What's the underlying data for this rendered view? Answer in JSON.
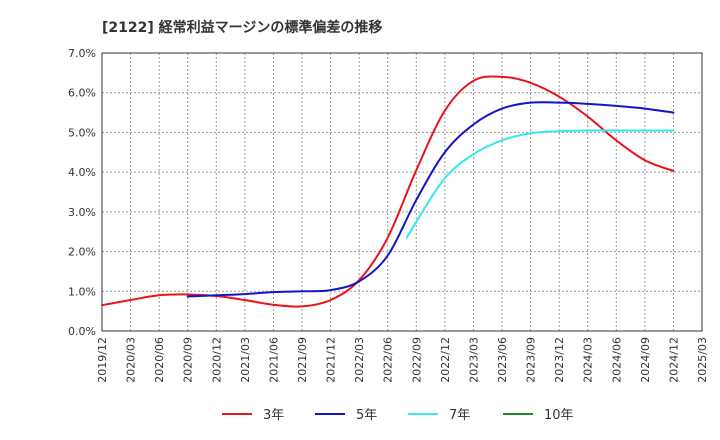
{
  "chart_data": {
    "type": "line",
    "title": "[2122]  経常利益マージンの標準偏差の推移",
    "xlabel": "",
    "ylabel": "",
    "x_ticks": [
      "2019/12",
      "2020/03",
      "2020/06",
      "2020/09",
      "2020/12",
      "2021/03",
      "2021/06",
      "2021/09",
      "2021/12",
      "2022/03",
      "2022/06",
      "2022/09",
      "2022/12",
      "2023/03",
      "2023/06",
      "2023/09",
      "2023/12",
      "2024/03",
      "2024/06",
      "2024/09",
      "2024/12",
      "2025/03"
    ],
    "y_ticks": [
      "0.0%",
      "1.0%",
      "2.0%",
      "3.0%",
      "4.0%",
      "5.0%",
      "6.0%",
      "7.0%"
    ],
    "ylim": [
      0,
      7
    ],
    "grid": true,
    "legend_position": "bottom",
    "series": [
      {
        "name": "3年",
        "color": "#e8141b",
        "points": [
          [
            "2019/12",
            0.65
          ],
          [
            "2020/03",
            0.78
          ],
          [
            "2020/06",
            0.9
          ],
          [
            "2020/09",
            0.92
          ],
          [
            "2020/12",
            0.88
          ],
          [
            "2021/03",
            0.78
          ],
          [
            "2021/06",
            0.66
          ],
          [
            "2021/09",
            0.62
          ],
          [
            "2021/12",
            0.78
          ],
          [
            "2022/03",
            1.28
          ],
          [
            "2022/06",
            2.35
          ],
          [
            "2022/09",
            4.05
          ],
          [
            "2022/12",
            5.55
          ],
          [
            "2023/03",
            6.3
          ],
          [
            "2023/06",
            6.4
          ],
          [
            "2023/09",
            6.25
          ],
          [
            "2023/12",
            5.9
          ],
          [
            "2024/03",
            5.4
          ],
          [
            "2024/06",
            4.8
          ],
          [
            "2024/09",
            4.3
          ],
          [
            "2024/12",
            4.03
          ]
        ]
      },
      {
        "name": "5年",
        "color": "#1414c8",
        "points": [
          [
            "2020/09",
            0.87
          ],
          [
            "2020/12",
            0.9
          ],
          [
            "2021/03",
            0.93
          ],
          [
            "2021/06",
            0.98
          ],
          [
            "2021/09",
            1.0
          ],
          [
            "2021/12",
            1.03
          ],
          [
            "2022/03",
            1.25
          ],
          [
            "2022/06",
            1.9
          ],
          [
            "2022/09",
            3.3
          ],
          [
            "2022/12",
            4.5
          ],
          [
            "2023/03",
            5.2
          ],
          [
            "2023/06",
            5.6
          ],
          [
            "2023/09",
            5.75
          ],
          [
            "2023/12",
            5.75
          ],
          [
            "2024/03",
            5.72
          ],
          [
            "2024/06",
            5.67
          ],
          [
            "2024/09",
            5.6
          ],
          [
            "2024/12",
            5.5
          ]
        ]
      },
      {
        "name": "7年",
        "color": "#33e8ee",
        "points": [
          [
            "2022/08",
            2.35
          ],
          [
            "2022/09",
            2.75
          ],
          [
            "2022/12",
            3.85
          ],
          [
            "2023/03",
            4.45
          ],
          [
            "2023/06",
            4.8
          ],
          [
            "2023/09",
            4.98
          ],
          [
            "2023/12",
            5.03
          ],
          [
            "2024/03",
            5.05
          ],
          [
            "2024/06",
            5.05
          ],
          [
            "2024/09",
            5.05
          ],
          [
            "2024/12",
            5.05
          ]
        ]
      },
      {
        "name": "10年",
        "color": "#228b22",
        "points": []
      }
    ]
  }
}
